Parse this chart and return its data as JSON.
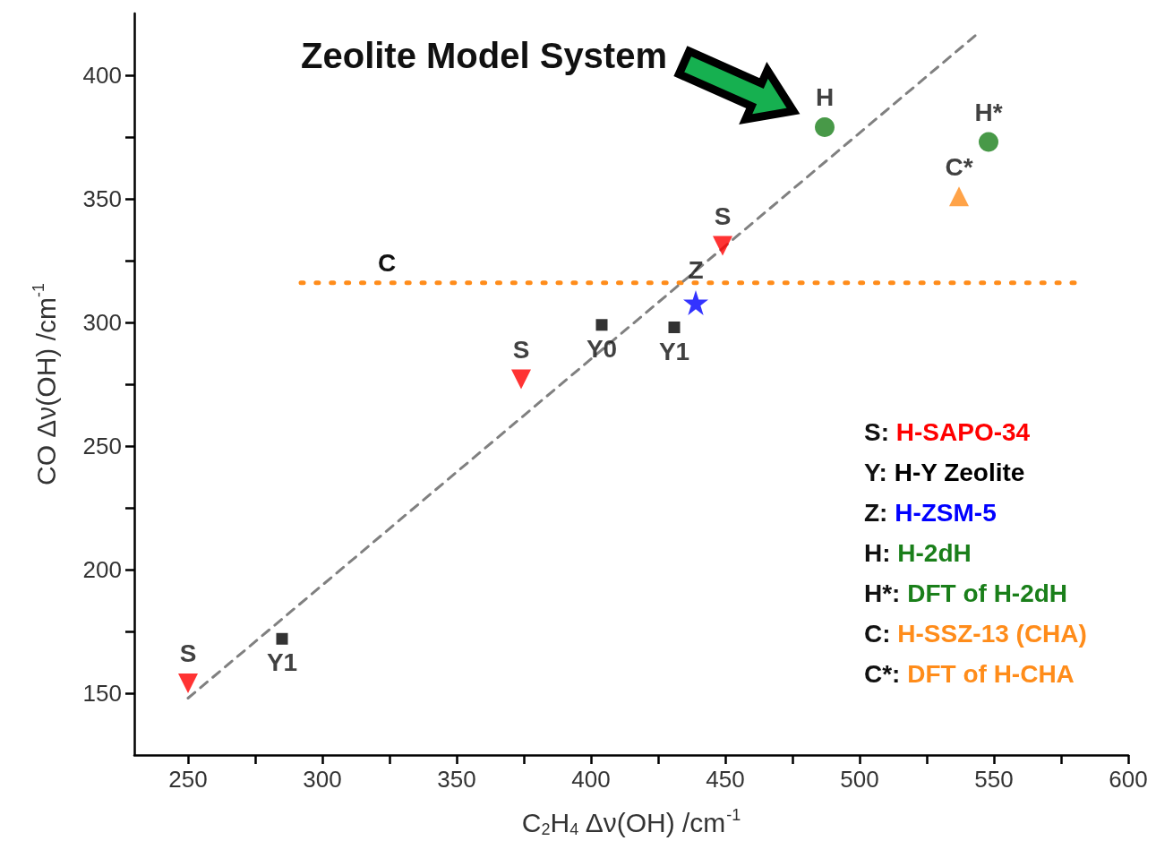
{
  "chart_data": {
    "type": "scatter",
    "xlabel": "C$_{2}$H$_{4}$ Δν(OH) /cm$^{-1}$",
    "ylabel": "CO Δν(OH) /cm$^{-1}$",
    "xlim": [
      230,
      600
    ],
    "xticks": [
      250,
      {
        "value": 275,
        "label": null
      },
      300,
      {
        "value": 325,
        "label": null
      },
      350,
      {
        "value": 375,
        "label": null
      },
      400,
      {
        "value": 425,
        "label": null
      },
      450,
      {
        "value": 475,
        "label": null
      },
      500,
      {
        "value": 525,
        "label": null
      },
      550,
      {
        "value": 575,
        "label": null
      },
      600
    ],
    "ylim": [
      125,
      425
    ],
    "yticks": [
      150,
      {
        "value": 175,
        "label": null
      },
      200,
      {
        "value": 225,
        "label": null
      },
      250,
      {
        "value": 275,
        "label": null
      },
      300,
      {
        "value": 325,
        "label": null
      },
      350,
      {
        "value": 375,
        "label": null
      },
      400
    ],
    "grid": false,
    "series": [
      {
        "color": "#ff0000",
        "marker": "triangle-down",
        "x": [
          250,
          374,
          449
        ],
        "values": [
          154,
          277,
          331
        ],
        "value_labels": [
          "S",
          "S",
          "S"
        ]
      },
      {
        "color": "#000000",
        "marker": "square",
        "x": [
          285,
          404,
          431
        ],
        "values": [
          172,
          299,
          298
        ],
        "value_labels": [
          "Y1",
          "Y0",
          "Y1"
        ]
      },
      {
        "color": "#0000ff",
        "marker": "star",
        "x": [
          439
        ],
        "values": [
          308
        ],
        "value_labels": [
          "Z"
        ]
      },
      {
        "color": "#1a7f1a",
        "marker": "circle",
        "x": [
          487
        ],
        "values": [
          379
        ],
        "value_labels": [
          "H"
        ]
      },
      {
        "color": "#1a7f1a",
        "marker": "circle",
        "x": [
          548
        ],
        "values": [
          373
        ],
        "value_labels": [
          "H*"
        ]
      },
      {
        "type": "line",
        "color": "#ff8c1a",
        "marker": "none",
        "line_style": "dotted",
        "x": [
          292,
          324,
          580
        ],
        "values": [
          316,
          316,
          316
        ],
        "value_labels": [
          null,
          "C",
          null
        ]
      },
      {
        "color": "#ff8c1a",
        "marker": "triangle",
        "x": [
          537
        ],
        "values": [
          351
        ],
        "value_labels": [
          "C*"
        ]
      },
      {
        "type": "line",
        "color": "#808080",
        "marker": "none",
        "line_style": "dashed",
        "x": [
          250,
          543
        ],
        "values": [
          148,
          416
        ]
      }
    ],
    "annotations": [
      "S: H-SAPO-34",
      "Y: H-Y Zeolite",
      "Z: H-ZSM-5",
      "H: H-2dH",
      "H*: DFT of H-2dH",
      "C: H-SSZ-13 (CHA)",
      "C*: DFT of H-CHA",
      "Zeolite Model System"
    ]
  }
}
